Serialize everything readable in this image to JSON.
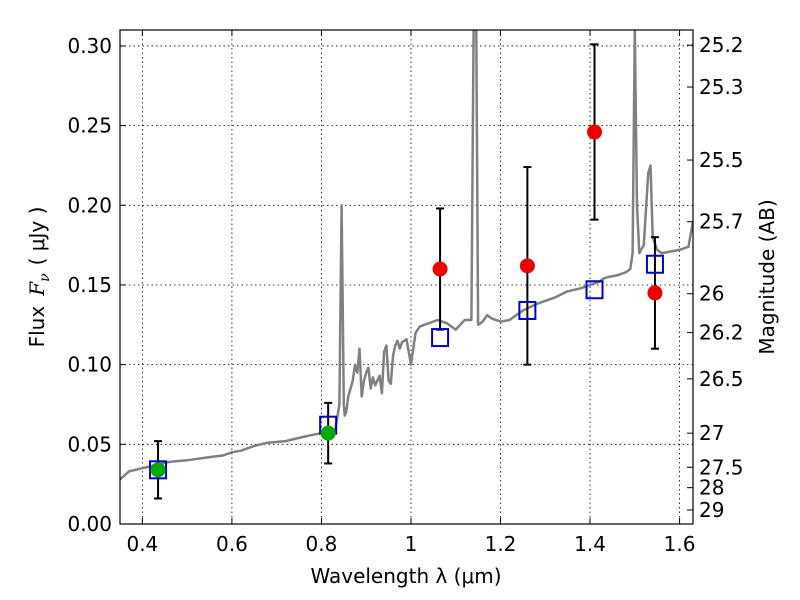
{
  "chart_data": {
    "type": "scatter",
    "xlabel": "Wavelength  λ (μm)",
    "ylabel_left_prefix": "Flux",
    "ylabel_left_symbol": "F",
    "ylabel_left_subscript": "ν",
    "ylabel_left_unit": "( μJy )",
    "ylabel_right": "Magnitude (AB)",
    "xlim": [
      0.35,
      1.63
    ],
    "ylim": [
      0.0,
      0.31
    ],
    "grid": true,
    "x_ticks": [
      {
        "value": 0.4,
        "label": "0.4"
      },
      {
        "value": 0.6,
        "label": "0.6"
      },
      {
        "value": 0.8,
        "label": "0.8"
      },
      {
        "value": 1.0,
        "label": "1"
      },
      {
        "value": 1.2,
        "label": "1.2"
      },
      {
        "value": 1.4,
        "label": "1.4"
      },
      {
        "value": 1.6,
        "label": "1.6"
      }
    ],
    "y_ticks": [
      {
        "value": 0.0,
        "label": "0.00"
      },
      {
        "value": 0.05,
        "label": "0.05"
      },
      {
        "value": 0.1,
        "label": "0.10"
      },
      {
        "value": 0.15,
        "label": "0.15"
      },
      {
        "value": 0.2,
        "label": "0.20"
      },
      {
        "value": 0.25,
        "label": "0.25"
      },
      {
        "value": 0.3,
        "label": "0.30"
      }
    ],
    "right_axis_ticks": [
      {
        "flux": 0.3005,
        "label": "25.2"
      },
      {
        "flux": 0.2742,
        "label": "25.3"
      },
      {
        "flux": 0.2284,
        "label": "25.5"
      },
      {
        "flux": 0.1897,
        "label": "25.7"
      },
      {
        "flux": 0.1445,
        "label": "26"
      },
      {
        "flux": 0.1201,
        "label": "26.2"
      },
      {
        "flux": 0.0911,
        "label": "26.5"
      },
      {
        "flux": 0.057,
        "label": "27"
      },
      {
        "flux": 0.0356,
        "label": "27.5"
      },
      {
        "flux": 0.0228,
        "label": "28"
      },
      {
        "flux": 0.0088,
        "label": "29"
      }
    ],
    "series": [
      {
        "kind": "line",
        "color": "#808080",
        "x": [
          0.35,
          0.37,
          0.4,
          0.43,
          0.46,
          0.5,
          0.55,
          0.58,
          0.6,
          0.62,
          0.65,
          0.68,
          0.72,
          0.75,
          0.78,
          0.8,
          0.815,
          0.82,
          0.83,
          0.84,
          0.845,
          0.85,
          0.852,
          0.855,
          0.86,
          0.87,
          0.875,
          0.88,
          0.885,
          0.89,
          0.895,
          0.9,
          0.905,
          0.91,
          0.915,
          0.92,
          0.93,
          0.935,
          0.94,
          0.945,
          0.95,
          0.955,
          0.96,
          0.965,
          0.97,
          0.975,
          0.98,
          0.99,
          1.0,
          1.01,
          1.02,
          1.04,
          1.06,
          1.08,
          1.1,
          1.12,
          1.135,
          1.14,
          1.143,
          1.146,
          1.15,
          1.16,
          1.17,
          1.18,
          1.2,
          1.22,
          1.25,
          1.28,
          1.32,
          1.35,
          1.38,
          1.4,
          1.42,
          1.43,
          1.44,
          1.46,
          1.48,
          1.49,
          1.495,
          1.5,
          1.505,
          1.51,
          1.52,
          1.53,
          1.535,
          1.54,
          1.55,
          1.56,
          1.58,
          1.6,
          1.62,
          1.63
        ],
        "y": [
          0.028,
          0.033,
          0.035,
          0.037,
          0.039,
          0.04,
          0.042,
          0.043,
          0.045,
          0.046,
          0.049,
          0.051,
          0.052,
          0.054,
          0.056,
          0.057,
          0.058,
          0.06,
          0.058,
          0.075,
          0.2,
          0.075,
          0.068,
          0.07,
          0.08,
          0.09,
          0.1,
          0.095,
          0.11,
          0.08,
          0.09,
          0.095,
          0.098,
          0.085,
          0.092,
          0.087,
          0.093,
          0.082,
          0.108,
          0.112,
          0.09,
          0.088,
          0.106,
          0.112,
          0.115,
          0.11,
          0.114,
          0.116,
          0.1,
          0.12,
          0.124,
          0.126,
          0.128,
          0.126,
          0.122,
          0.128,
          0.128,
          0.31,
          0.31,
          0.31,
          0.125,
          0.127,
          0.131,
          0.129,
          0.127,
          0.128,
          0.134,
          0.138,
          0.142,
          0.146,
          0.148,
          0.15,
          0.152,
          0.154,
          0.155,
          0.156,
          0.158,
          0.16,
          0.17,
          0.31,
          0.2,
          0.17,
          0.175,
          0.22,
          0.225,
          0.18,
          0.172,
          0.17,
          0.171,
          0.172,
          0.174,
          0.19
        ]
      },
      {
        "kind": "open-square",
        "color": "#0000cc",
        "x": [
          0.435,
          0.815,
          1.065,
          1.26,
          1.41,
          1.545
        ],
        "y": [
          0.034,
          0.062,
          0.117,
          0.134,
          0.147,
          0.163
        ]
      },
      {
        "kind": "filled-circle",
        "color": "#00aa00",
        "x": [
          0.435,
          0.815
        ],
        "y": [
          0.034,
          0.057
        ],
        "err": [
          0.018,
          0.019
        ]
      },
      {
        "kind": "filled-circle",
        "color": "#ee0000",
        "x": [
          1.065,
          1.26,
          1.41,
          1.545
        ],
        "y": [
          0.16,
          0.162,
          0.246,
          0.145
        ],
        "err": [
          0.038,
          0.062,
          0.055,
          0.035
        ]
      }
    ]
  }
}
